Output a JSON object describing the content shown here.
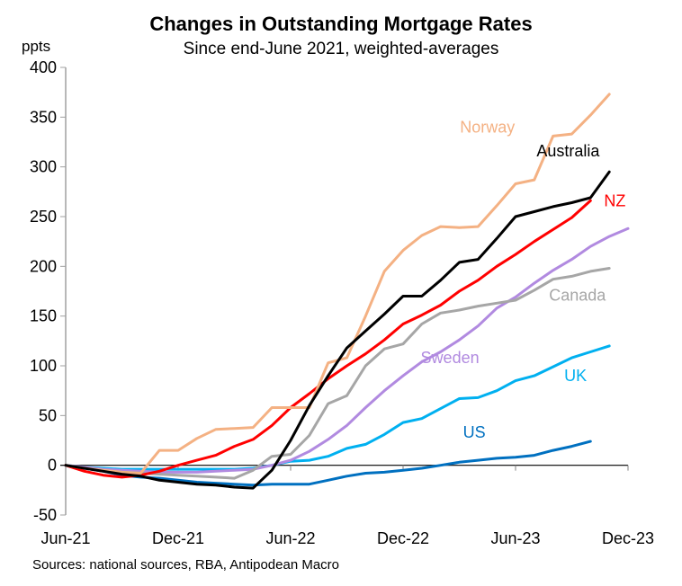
{
  "chart_data": {
    "type": "line",
    "title": "Changes in Outstanding Mortgage Rates",
    "subtitle": "Since end-June 2021, weighted-averages",
    "ylabel": "ppts",
    "xlabel": "",
    "source": "Sources: national sources, RBA, Antipodean Macro",
    "ylim": [
      -50,
      400
    ],
    "yticks": [
      -50,
      0,
      50,
      100,
      150,
      200,
      250,
      300,
      350,
      400
    ],
    "ytick_labels": [
      "-50",
      "0",
      "50",
      "100",
      "150",
      "200",
      "250",
      "300",
      "350",
      "400"
    ],
    "x_months_from": "Jun-21",
    "xlim_months": [
      0,
      30
    ],
    "xticks_months": [
      0,
      6,
      12,
      18,
      24,
      30
    ],
    "xtick_labels": [
      "Jun-21",
      "Dec-21",
      "Jun-22",
      "Dec-22",
      "Jun-23",
      "Dec-23"
    ],
    "grid": false,
    "legend": "inline labels",
    "series": [
      {
        "name": "Norway",
        "color": "#F4B183",
        "label_pos": [
          22.5,
          340
        ],
        "values": [
          0,
          -3,
          -5,
          -7,
          -8,
          15,
          15,
          27,
          36,
          37,
          38,
          58,
          58,
          58,
          103,
          108,
          150,
          195,
          216,
          231,
          240,
          239,
          240,
          261,
          283,
          287,
          331,
          333,
          352,
          373
        ]
      },
      {
        "name": "Australia",
        "color": "#000000",
        "label_pos": [
          26.8,
          316
        ],
        "values": [
          0,
          -3,
          -6,
          -9,
          -11,
          -15,
          -17,
          -19,
          -20,
          -22,
          -23,
          -5,
          25,
          60,
          90,
          118,
          135,
          152,
          170,
          170,
          186,
          204,
          207,
          228,
          250,
          255,
          260,
          264,
          269,
          295
        ]
      },
      {
        "name": "NZ",
        "color": "#FF0000",
        "label_pos": [
          29.3,
          266
        ],
        "values": [
          0,
          -6,
          -10,
          -12,
          -10,
          -6,
          0,
          5,
          10,
          19,
          26,
          40,
          58,
          72,
          87,
          100,
          112,
          126,
          142,
          151,
          161,
          175,
          186,
          200,
          212,
          225,
          237,
          249,
          266
        ]
      },
      {
        "name": "Canada",
        "color": "#A6A6A6",
        "label_pos": [
          27.3,
          171
        ],
        "values": [
          0,
          -3,
          -5,
          -7,
          -8,
          -9,
          -10,
          -11,
          -12,
          -13,
          -5,
          9,
          11,
          30,
          62,
          70,
          100,
          117,
          122,
          142,
          153,
          156,
          160,
          163,
          166,
          176,
          187,
          190,
          195,
          198
        ]
      },
      {
        "name": "Sweden",
        "color": "#B18AE0",
        "label_pos": [
          20.5,
          108
        ],
        "values": [
          0,
          -2,
          -4,
          -5,
          -6,
          -7,
          -7,
          -7,
          -6,
          -5,
          -4,
          0,
          5,
          14,
          26,
          40,
          58,
          75,
          90,
          104,
          114,
          126,
          140,
          158,
          169,
          183,
          196,
          207,
          220,
          230,
          238
        ]
      },
      {
        "name": "UK",
        "color": "#00B0F0",
        "label_pos": [
          27.2,
          90
        ],
        "values": [
          0,
          -2,
          -3,
          -4,
          -4,
          -4,
          -4,
          -4,
          -4,
          -4,
          -3,
          0,
          4,
          5,
          9,
          17,
          21,
          31,
          43,
          47,
          57,
          67,
          68,
          75,
          85,
          90,
          99,
          108,
          114,
          120
        ]
      },
      {
        "name": "US",
        "color": "#0070C0",
        "label_pos": [
          21.8,
          33
        ],
        "values": [
          0,
          -3,
          -6,
          -10,
          -12,
          -13,
          -15,
          -17,
          -18,
          -19,
          -20,
          -19,
          -19,
          -19,
          -15,
          -11,
          -8,
          -7,
          -5,
          -3,
          0,
          3,
          5,
          7,
          8,
          10,
          15,
          19,
          24
        ]
      }
    ]
  }
}
